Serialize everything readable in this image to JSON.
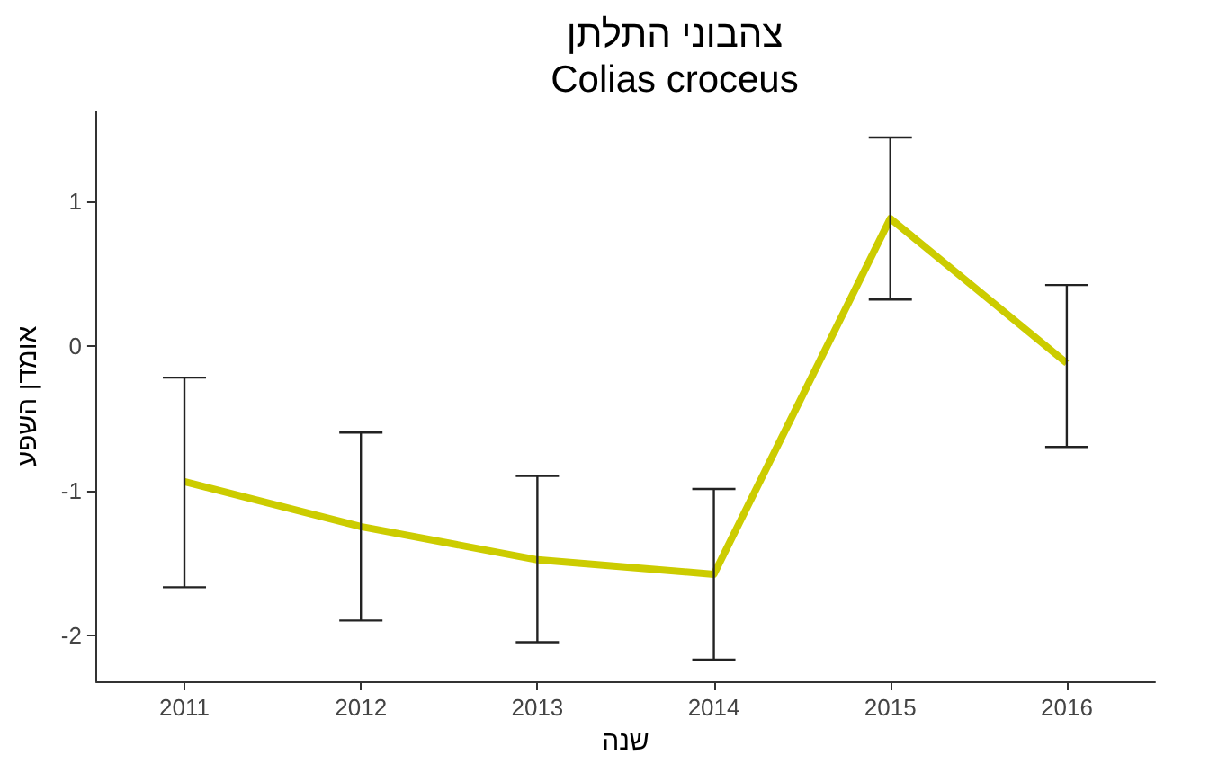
{
  "chart_data": {
    "type": "line",
    "title": "צהבוני התלתן",
    "subtitle": "Colias croceus",
    "xlabel": "שנה",
    "ylabel": "אומדן השפע",
    "categories": [
      "2011",
      "2012",
      "2013",
      "2014",
      "2015",
      "2016"
    ],
    "series": [
      {
        "color": "#cccc00",
        "values": [
          -0.94,
          -1.25,
          -1.48,
          -1.58,
          0.88,
          -0.12
        ],
        "errors": [
          [
            -1.67,
            -0.22
          ],
          [
            -1.9,
            -0.6
          ],
          [
            -2.05,
            -0.9
          ],
          [
            -2.17,
            -0.99
          ],
          [
            0.32,
            1.44
          ],
          [
            -0.7,
            0.42
          ]
        ]
      }
    ],
    "ylim": [
      -2.32,
      1.62
    ],
    "yticks": [
      -2,
      -1,
      0,
      1
    ],
    "grid": false,
    "marker": "none",
    "line_style": "solid"
  }
}
